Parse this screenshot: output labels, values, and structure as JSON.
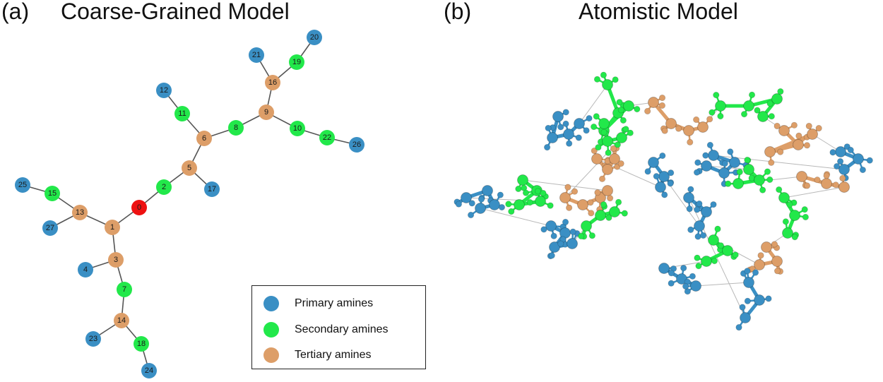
{
  "panels": {
    "a": {
      "tag": "(a)",
      "title": "Coarse-Grained Model"
    },
    "b": {
      "tag": "(b)",
      "title": "Atomistic Model"
    }
  },
  "colors": {
    "primary": "#3a8fc4",
    "secondary": "#22e84a",
    "tertiary": "#dd9e68",
    "core": "#ee1111",
    "bond": "#555555"
  },
  "legend": {
    "items": [
      {
        "key": "primary",
        "label": "Primary amines"
      },
      {
        "key": "secondary",
        "label": "Secondary amines"
      },
      {
        "key": "tertiary",
        "label": "Tertiary amines"
      }
    ]
  },
  "graph": {
    "nodes": [
      {
        "id": "0",
        "label": "0",
        "type": "core"
      },
      {
        "id": "1",
        "label": "1",
        "type": "tertiary"
      },
      {
        "id": "2",
        "label": "2",
        "type": "secondary"
      },
      {
        "id": "3",
        "label": "3",
        "type": "tertiary"
      },
      {
        "id": "4",
        "label": "4",
        "type": "primary"
      },
      {
        "id": "5",
        "label": "5",
        "type": "tertiary"
      },
      {
        "id": "6",
        "label": "6",
        "type": "tertiary"
      },
      {
        "id": "7",
        "label": "7",
        "type": "secondary"
      },
      {
        "id": "8",
        "label": "8",
        "type": "secondary"
      },
      {
        "id": "9",
        "label": "9",
        "type": "tertiary"
      },
      {
        "id": "10",
        "label": "10",
        "type": "secondary"
      },
      {
        "id": "11",
        "label": "11",
        "type": "secondary"
      },
      {
        "id": "12",
        "label": "12",
        "type": "primary"
      },
      {
        "id": "13",
        "label": "13",
        "type": "tertiary"
      },
      {
        "id": "14",
        "label": "14",
        "type": "tertiary"
      },
      {
        "id": "15",
        "label": "15",
        "type": "secondary"
      },
      {
        "id": "16",
        "label": "16",
        "type": "tertiary"
      },
      {
        "id": "17",
        "label": "17",
        "type": "primary"
      },
      {
        "id": "18",
        "label": "18",
        "type": "secondary"
      },
      {
        "id": "19",
        "label": "19",
        "type": "secondary"
      },
      {
        "id": "20",
        "label": "20",
        "type": "primary"
      },
      {
        "id": "21",
        "label": "21",
        "type": "primary"
      },
      {
        "id": "22",
        "label": "22",
        "type": "secondary"
      },
      {
        "id": "23",
        "label": "23",
        "type": "primary"
      },
      {
        "id": "24",
        "label": "24",
        "type": "primary"
      },
      {
        "id": "25",
        "label": "25",
        "type": "primary"
      },
      {
        "id": "26",
        "label": "26",
        "type": "primary"
      },
      {
        "id": "27",
        "label": "27",
        "type": "primary"
      }
    ],
    "edges": [
      [
        "0",
        "1"
      ],
      [
        "0",
        "2"
      ],
      [
        "2",
        "5"
      ],
      [
        "5",
        "17"
      ],
      [
        "5",
        "6"
      ],
      [
        "6",
        "11"
      ],
      [
        "11",
        "12"
      ],
      [
        "6",
        "8"
      ],
      [
        "8",
        "9"
      ],
      [
        "9",
        "16"
      ],
      [
        "16",
        "21"
      ],
      [
        "16",
        "19"
      ],
      [
        "19",
        "20"
      ],
      [
        "9",
        "10"
      ],
      [
        "10",
        "22"
      ],
      [
        "22",
        "26"
      ],
      [
        "1",
        "13"
      ],
      [
        "13",
        "15"
      ],
      [
        "15",
        "25"
      ],
      [
        "13",
        "27"
      ],
      [
        "1",
        "3"
      ],
      [
        "3",
        "4"
      ],
      [
        "3",
        "7"
      ],
      [
        "7",
        "14"
      ],
      [
        "14",
        "23"
      ],
      [
        "14",
        "18"
      ],
      [
        "18",
        "24"
      ]
    ]
  }
}
